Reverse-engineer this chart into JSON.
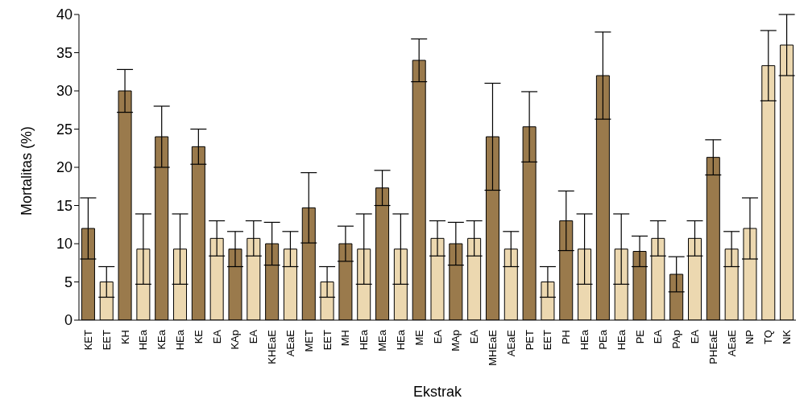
{
  "chart_data": {
    "type": "bar",
    "xlabel": "Ekstrak",
    "ylabel": "Mortalitas (%)",
    "categories": [
      "KET",
      "EET",
      "KH",
      "HEa",
      "KEa",
      "HEa",
      "KE",
      "EA",
      "KAp",
      "EA",
      "KHEaE",
      "AEaE",
      "MET",
      "EET",
      "MH",
      "HEa",
      "MEa",
      "HEa",
      "ME",
      "EA",
      "MAp",
      "EA",
      "MHEaE",
      "AEaE",
      "PET",
      "EET",
      "PH",
      "HEa",
      "PEa",
      "HEa",
      "PE",
      "EA",
      "PAp",
      "EA",
      "PHEaE",
      "AEaE",
      "NP",
      "TQ",
      "NK"
    ],
    "values": [
      12,
      5,
      30,
      9.3,
      24,
      9.3,
      22.7,
      10.7,
      9.3,
      10.7,
      10,
      9.3,
      14.7,
      5,
      10,
      9.3,
      17.3,
      9.3,
      34,
      10.7,
      10,
      10.7,
      24,
      9.3,
      25.3,
      5,
      13,
      9.3,
      32,
      9.3,
      9,
      10.7,
      6,
      10.7,
      21.3,
      9.3,
      12,
      33.3,
      36
    ],
    "errors": [
      4,
      2,
      2.8,
      4.6,
      4,
      4.6,
      2.3,
      2.3,
      2.3,
      2.3,
      2.8,
      2.3,
      4.6,
      2,
      2.3,
      4.6,
      2.3,
      4.6,
      2.8,
      2.3,
      2.8,
      2.3,
      7,
      2.3,
      4.6,
      2,
      3.9,
      4.6,
      5.7,
      4.6,
      2,
      2.3,
      2.3,
      2.3,
      2.3,
      2.3,
      4,
      4.6,
      4
    ],
    "colors": [
      "#9a7a4c",
      "#ecd8b0",
      "#9a7a4c",
      "#ecd8b0",
      "#9a7a4c",
      "#ecd8b0",
      "#9a7a4c",
      "#ecd8b0",
      "#9a7a4c",
      "#ecd8b0",
      "#9a7a4c",
      "#ecd8b0",
      "#9a7a4c",
      "#ecd8b0",
      "#9a7a4c",
      "#ecd8b0",
      "#9a7a4c",
      "#ecd8b0",
      "#9a7a4c",
      "#ecd8b0",
      "#9a7a4c",
      "#ecd8b0",
      "#9a7a4c",
      "#ecd8b0",
      "#9a7a4c",
      "#ecd8b0",
      "#9a7a4c",
      "#ecd8b0",
      "#9a7a4c",
      "#ecd8b0",
      "#9a7a4c",
      "#ecd8b0",
      "#9a7a4c",
      "#ecd8b0",
      "#9a7a4c",
      "#ecd8b0",
      "#ecd8b0",
      "#ecd8b0",
      "#ecd8b0"
    ],
    "ylim": [
      0,
      40
    ],
    "yticks": [
      0,
      5,
      10,
      15,
      20,
      25,
      30,
      35,
      40
    ],
    "grid": false,
    "legend": false
  }
}
